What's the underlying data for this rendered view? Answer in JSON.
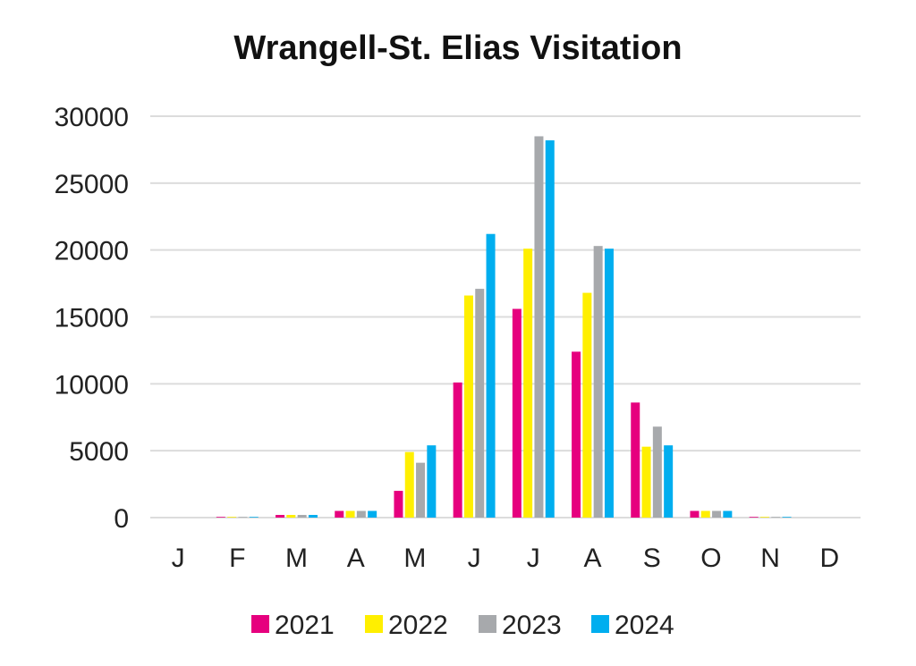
{
  "chart_data": {
    "type": "bar",
    "title": "Wrangell-St. Elias Visitation",
    "xlabel": "",
    "ylabel": "",
    "categories": [
      "J",
      "F",
      "M",
      "A",
      "M",
      "J",
      "J",
      "A",
      "S",
      "O",
      "N",
      "D"
    ],
    "ylim": [
      0,
      30000
    ],
    "yticks": [
      "30000",
      "25000",
      "20000",
      "15000",
      "10000",
      "5000",
      "0"
    ],
    "grid": true,
    "legend_position": "bottom",
    "series": [
      {
        "name": "2021",
        "color": "#e6007e",
        "values": [
          0,
          50,
          200,
          500,
          2000,
          10100,
          15600,
          12400,
          8600,
          500,
          50,
          0
        ]
      },
      {
        "name": "2022",
        "color": "#ffef00",
        "values": [
          0,
          50,
          200,
          500,
          4900,
          16600,
          20100,
          16800,
          5300,
          500,
          50,
          0
        ]
      },
      {
        "name": "2023",
        "color": "#a7a9ac",
        "values": [
          0,
          50,
          200,
          500,
          4100,
          17100,
          28500,
          20300,
          6800,
          500,
          50,
          0
        ]
      },
      {
        "name": "2024",
        "color": "#00aeef",
        "values": [
          0,
          50,
          200,
          500,
          5400,
          21200,
          28200,
          20100,
          5400,
          500,
          50,
          0
        ]
      }
    ]
  }
}
